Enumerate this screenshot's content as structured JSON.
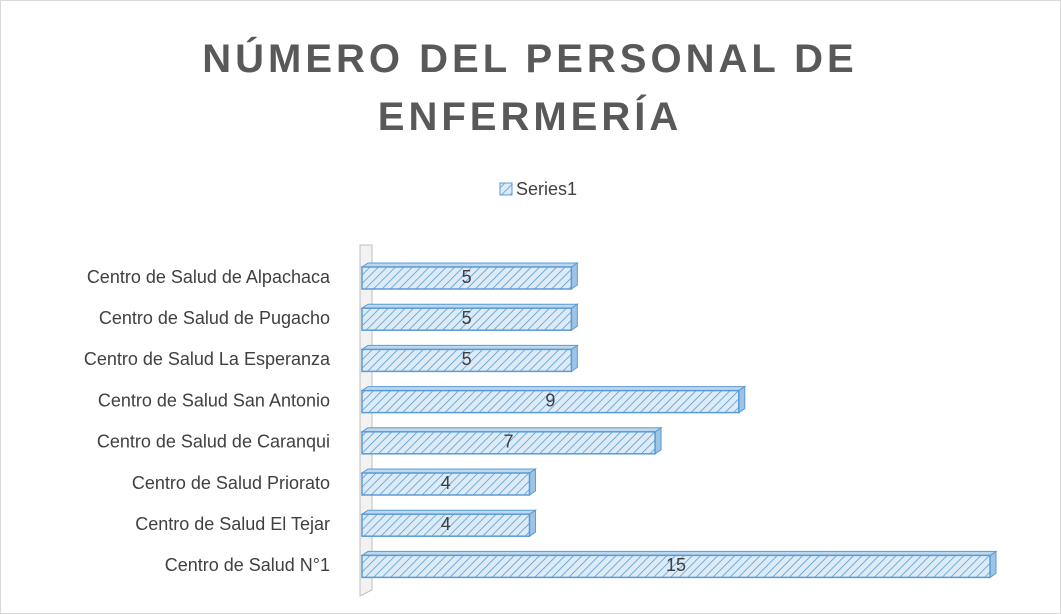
{
  "chart_data": {
    "type": "bar",
    "orientation": "horizontal",
    "title": "NÚMERO DEL PERSONAL DE ENFERMERÍA",
    "categories": [
      "Centro de Salud de Alpachaca",
      "Centro de Salud de Pugacho",
      "Centro de Salud La Esperanza",
      "Centro de Salud San Antonio",
      "Centro de Salud de Caranqui",
      "Centro de Salud Priorato",
      "Centro de Salud El Tejar",
      "Centro de Salud N°1"
    ],
    "series": [
      {
        "name": "Series1",
        "color": "#5b9bd5",
        "values": [
          5,
          5,
          5,
          9,
          7,
          4,
          4,
          15
        ]
      }
    ],
    "legend": "top"
  }
}
